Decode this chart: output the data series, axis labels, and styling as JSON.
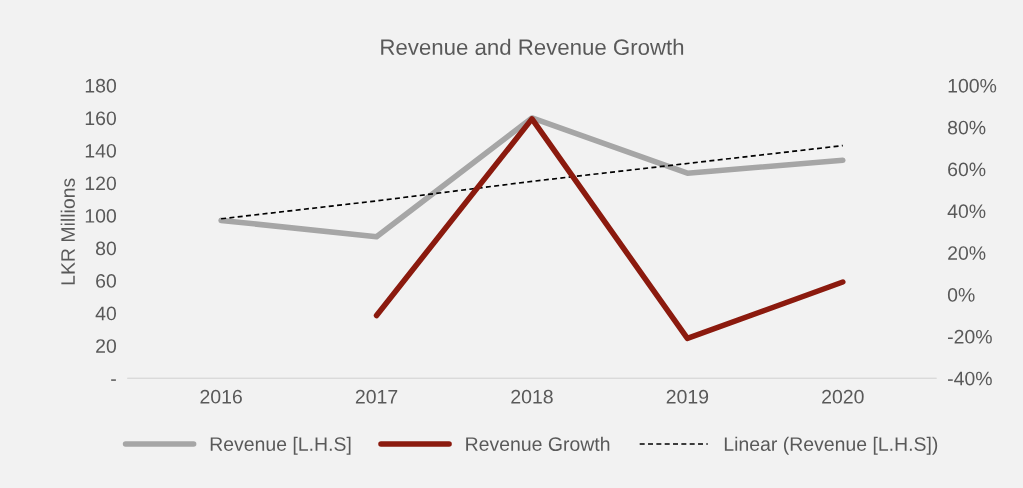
{
  "chart_data": {
    "type": "line",
    "title": "Revenue and Revenue Growth",
    "ylabel": "LKR Millions",
    "categories": [
      "2016",
      "2017",
      "2018",
      "2019",
      "2020"
    ],
    "series": [
      {
        "name": "Revenue [L.H.S]",
        "color": "#a6a6a6",
        "values": [
          97,
          87,
          160,
          126,
          134
        ]
      },
      {
        "name": "Revenue Growth",
        "color": "#8b1a0e",
        "values": [
          null,
          -10,
          84,
          -21,
          6
        ],
        "axis": "y2"
      },
      {
        "name": "Linear (Revenue [L.H.S])",
        "color": "#000000",
        "values": [
          98,
          109,
          121,
          132,
          143
        ],
        "line_style": "dashed"
      }
    ],
    "ylim": [
      0,
      180
    ],
    "yticks": [
      {
        "value": 0,
        "label": "-"
      },
      20,
      40,
      60,
      80,
      100,
      120,
      140,
      160,
      180
    ],
    "y2lim": [
      -40,
      100
    ],
    "y2ticks": [
      {
        "value": -40,
        "label": "-40%"
      },
      {
        "value": -20,
        "label": "-20%"
      },
      {
        "value": 0,
        "label": "0%"
      },
      {
        "value": 20,
        "label": "20%"
      },
      {
        "value": 40,
        "label": "40%"
      },
      {
        "value": 60,
        "label": "60%"
      },
      {
        "value": 80,
        "label": "80%"
      },
      {
        "value": 100,
        "label": "100%"
      }
    ],
    "grid": false,
    "legend": "bottom",
    "marker": "none",
    "line_style": "solid"
  }
}
